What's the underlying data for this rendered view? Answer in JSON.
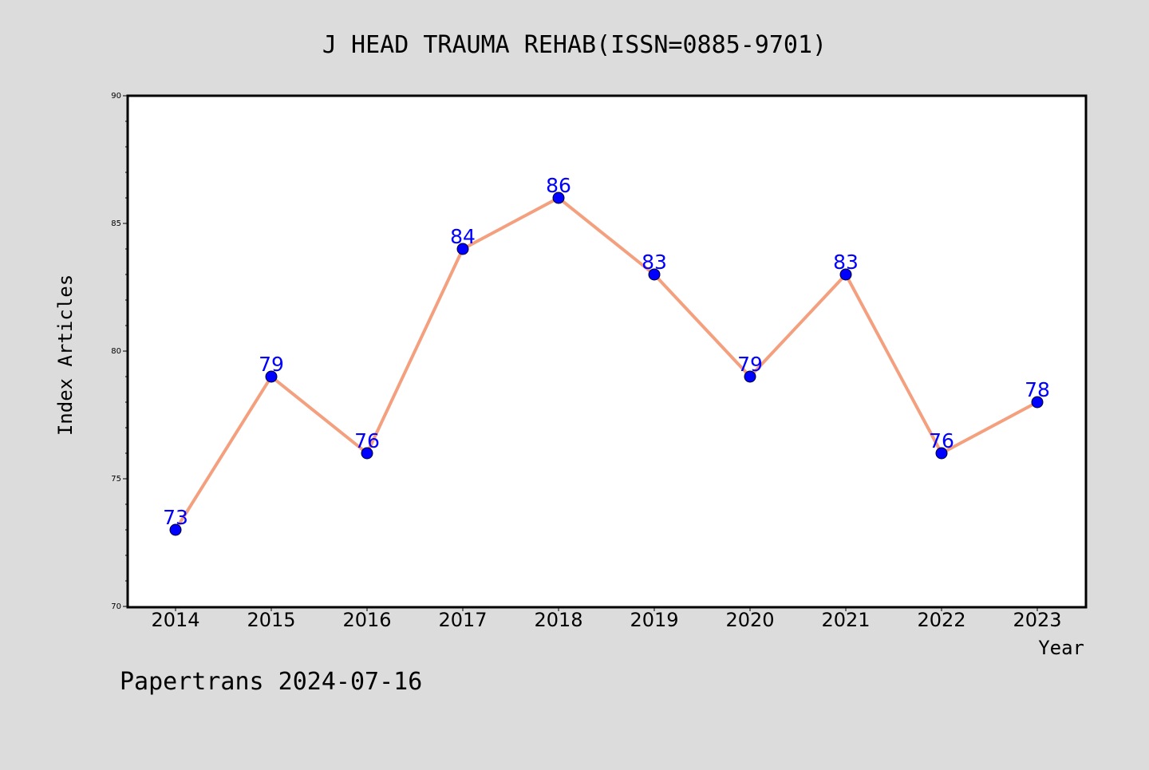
{
  "chart_data": {
    "type": "line",
    "title": "J HEAD TRAUMA REHAB(ISSN=0885-9701)",
    "xlabel": "Year",
    "ylabel": "Index Articles",
    "categories": [
      "2014",
      "2015",
      "2016",
      "2017",
      "2018",
      "2019",
      "2020",
      "2021",
      "2022",
      "2023"
    ],
    "series": [
      {
        "values": [
          73,
          79,
          76,
          84,
          86,
          83,
          79,
          83,
          76,
          78
        ]
      }
    ],
    "data_labels": [
      "73",
      "79",
      "76",
      "84",
      "86",
      "83",
      "79",
      "83",
      "76",
      "78"
    ],
    "ylim": [
      70,
      90
    ],
    "y_ticks": [
      70,
      75,
      80,
      85,
      90
    ],
    "y_tick_labels": [
      "70",
      "75",
      "80",
      "85",
      "90"
    ],
    "y_minor_step": 1,
    "grid": false,
    "legend": "none",
    "colors": {
      "line": "#f4a07e",
      "marker": "#0000ff",
      "label": "#0000ff",
      "background": "#dcdcdc",
      "plot_background": "#ffffff"
    }
  },
  "footer": {
    "text": "Papertrans 2024-07-16"
  }
}
